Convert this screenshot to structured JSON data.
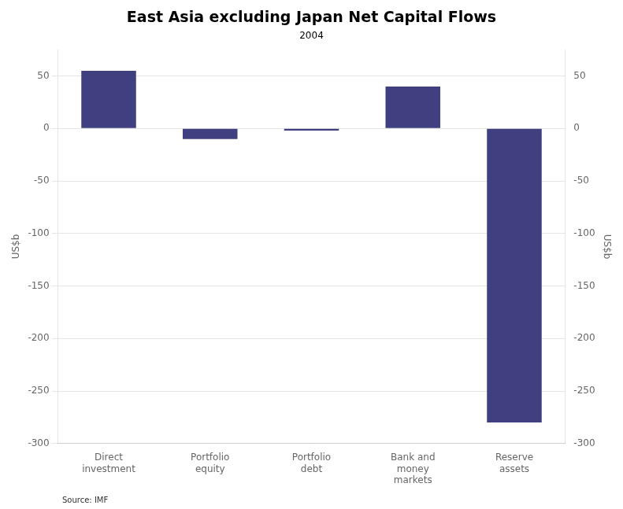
{
  "chart_data": {
    "type": "bar",
    "title": "East Asia excluding Japan Net Capital Flows",
    "subtitle": "2004",
    "ylabel": "US$b",
    "y2label": "US$b",
    "annotations": [
      "Source: IMF"
    ],
    "categories": [
      "Direct\ninvestment",
      "Portfolio\nequity",
      "Portfolio\ndebt",
      "Bank and\nmoney\nmarkets",
      "Reserve\nassets"
    ],
    "values": [
      55,
      -10,
      -2,
      40,
      -280
    ],
    "color": "#404080",
    "ylim": [
      -300,
      75
    ],
    "yticks": [
      -300,
      -250,
      -200,
      -150,
      -100,
      -50,
      0,
      50
    ],
    "y2lim": [
      -300,
      75
    ],
    "y2ticks": [
      -300,
      -250,
      -200,
      -150,
      -100,
      -50,
      0,
      50
    ],
    "grid": true
  }
}
